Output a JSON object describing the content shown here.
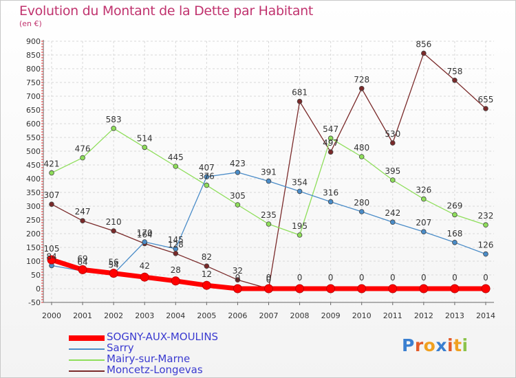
{
  "chart_data": {
    "type": "line",
    "title": "Evolution du Montant de la Dette par Habitant",
    "subtitle": "(en €)",
    "x": [
      "2000",
      "2001",
      "2002",
      "2003",
      "2004",
      "2005",
      "2006",
      "2007",
      "2008",
      "2009",
      "2010",
      "2011",
      "2012",
      "2013",
      "2014"
    ],
    "ylim": [
      -50,
      900
    ],
    "yticks": [
      -50,
      0,
      50,
      100,
      150,
      200,
      250,
      300,
      350,
      400,
      450,
      500,
      550,
      600,
      650,
      700,
      750,
      800,
      850,
      900
    ],
    "grid": true,
    "legend_position": "bottom-left",
    "series": [
      {
        "name": "SOGNY-AUX-MOULINS",
        "color": "#ff0000",
        "values": [
          105,
          69,
          56,
          42,
          28,
          12,
          0,
          0,
          0,
          0,
          0,
          0,
          0,
          0,
          0
        ],
        "labels": [
          "105",
          "69",
          "56",
          "42",
          "28",
          "12",
          "0",
          "0",
          "0",
          "0",
          "0",
          "0",
          "0",
          "0",
          "0"
        ]
      },
      {
        "name": "Sarry",
        "color": "#4a8cc8",
        "values": [
          84,
          64,
          54,
          170,
          145,
          407,
          423,
          391,
          354,
          316,
          280,
          242,
          207,
          168,
          126
        ],
        "labels": [
          "84",
          "64",
          "54",
          "170",
          "145",
          "407",
          "423",
          "391",
          "354",
          "316",
          "280",
          "242",
          "207",
          "168",
          "126"
        ]
      },
      {
        "name": "Mairy-sur-Marne",
        "color": "#8ede5a",
        "values": [
          421,
          476,
          583,
          514,
          445,
          376,
          305,
          235,
          195,
          547,
          480,
          395,
          326,
          269,
          232
        ],
        "labels": [
          "421",
          "476",
          "583",
          "514",
          "445",
          "376",
          "305",
          "235",
          "195",
          "547",
          "480",
          "395",
          "326",
          "269",
          "232"
        ]
      },
      {
        "name": "Moncetz-Longevas",
        "color": "#7a2a2a",
        "values": [
          307,
          247,
          210,
          164,
          128,
          82,
          32,
          0,
          681,
          497,
          728,
          530,
          856,
          758,
          655
        ],
        "labels": [
          "307",
          "247",
          "210",
          "164",
          "128",
          "82",
          "32",
          "0",
          "681",
          "497",
          "728",
          "530",
          "856",
          "758",
          "655"
        ]
      }
    ]
  },
  "logo": {
    "letters": [
      "P",
      "r",
      "o",
      "x",
      "i",
      "t",
      "i"
    ],
    "colors": [
      "#3a7fd0",
      "#e25b2a",
      "#f0a020",
      "#3a7fd0",
      "#e25b2a",
      "#f0a020",
      "#8bc34a"
    ]
  }
}
